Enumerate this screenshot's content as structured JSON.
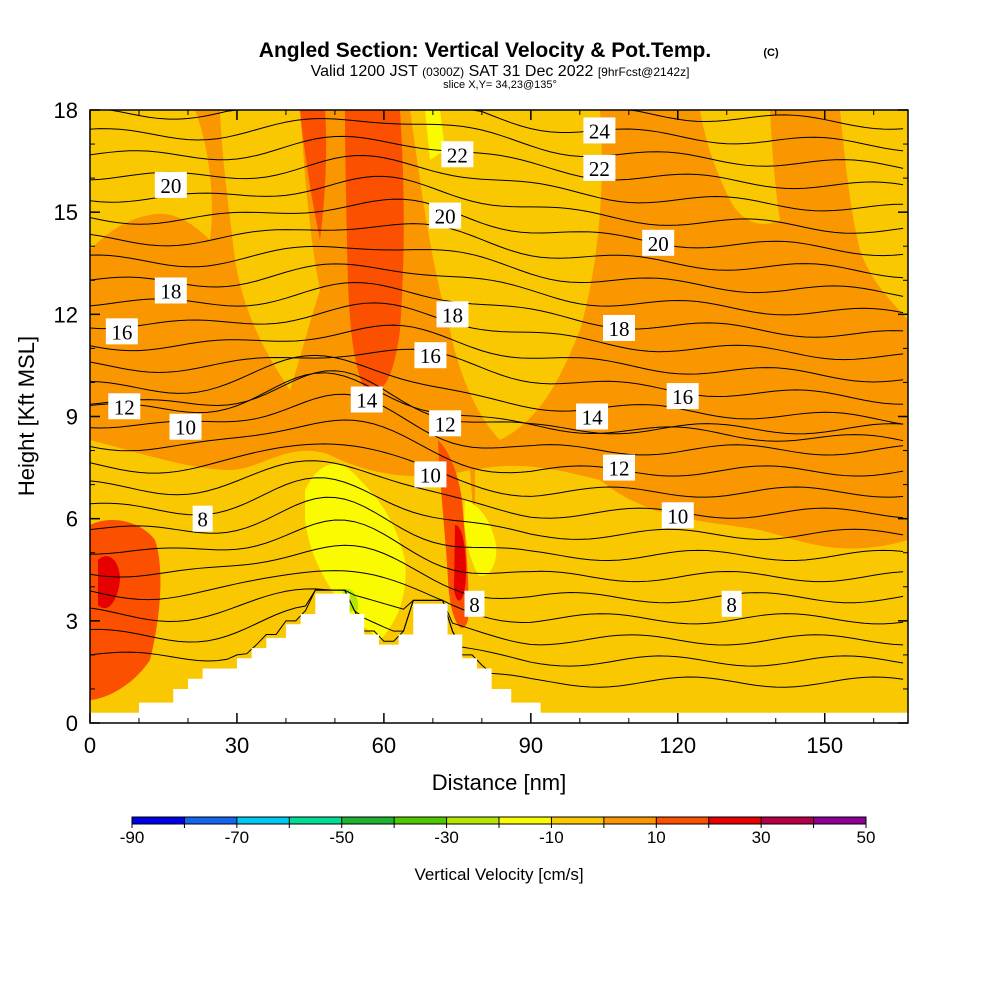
{
  "header": {
    "title": "Angled Section: Vertical Velocity & Pot.Temp.",
    "title_unit": "(C)",
    "valid_prefix": "Valid 1200 JST",
    "valid_utc": "(0300Z)",
    "valid_date": "SAT 31 Dec 2022",
    "forecast": "[9hrFcst@2142z]",
    "slice": "slice X,Y= 34,23@135°"
  },
  "colorbar": {
    "title": "Vertical Velocity [cm/s]",
    "tick_labels": [
      "-90",
      "-70",
      "-50",
      "-30",
      "-10",
      "10",
      "30",
      "50"
    ],
    "colors": [
      "#0000e6",
      "#1464f0",
      "#00c8f0",
      "#00dc96",
      "#1eb432",
      "#50c800",
      "#b4e600",
      "#fafa00",
      "#fac800",
      "#fa9600",
      "#fa5000",
      "#e60000",
      "#b40046",
      "#8c0096"
    ]
  },
  "chart_data": {
    "type": "heatmap",
    "title": "Angled Section: Vertical Velocity & Pot.Temp. (C)",
    "xlabel": "Distance [nm]",
    "ylabel": "Height [Kft MSL]",
    "xlim": [
      0,
      167
    ],
    "ylim": [
      0,
      18
    ],
    "x_ticks": [
      0,
      30,
      60,
      90,
      120,
      150
    ],
    "y_ticks": [
      0,
      3,
      6,
      9,
      12,
      15,
      18
    ],
    "color_variable": "Vertical Velocity [cm/s]",
    "contour_variable": "Potential Temperature (C)",
    "contour_labels": [
      {
        "text": "24",
        "x": 104,
        "y": 17.4
      },
      {
        "text": "22",
        "x": 75,
        "y": 16.7
      },
      {
        "text": "22",
        "x": 104,
        "y": 16.3
      },
      {
        "text": "20",
        "x": 16.5,
        "y": 15.8
      },
      {
        "text": "20",
        "x": 72.5,
        "y": 14.9
      },
      {
        "text": "20",
        "x": 116,
        "y": 14.1
      },
      {
        "text": "18",
        "x": 16.5,
        "y": 12.7
      },
      {
        "text": "18",
        "x": 74,
        "y": 12.0
      },
      {
        "text": "18",
        "x": 108,
        "y": 11.6
      },
      {
        "text": "16",
        "x": 6.5,
        "y": 11.5
      },
      {
        "text": "16",
        "x": 69.5,
        "y": 10.8
      },
      {
        "text": "16",
        "x": 121,
        "y": 9.6
      },
      {
        "text": "14",
        "x": 56.5,
        "y": 9.5
      },
      {
        "text": "14",
        "x": 102.5,
        "y": 9.0
      },
      {
        "text": "12",
        "x": 7,
        "y": 9.3
      },
      {
        "text": "12",
        "x": 72.5,
        "y": 8.8
      },
      {
        "text": "12",
        "x": 108,
        "y": 7.5
      },
      {
        "text": "10",
        "x": 19.5,
        "y": 8.7
      },
      {
        "text": "10",
        "x": 69.5,
        "y": 7.3
      },
      {
        "text": "10",
        "x": 120,
        "y": 6.1
      },
      {
        "text": "8",
        "x": 23,
        "y": 6.0
      },
      {
        "text": "8",
        "x": 78.5,
        "y": 3.5
      },
      {
        "text": "8",
        "x": 131,
        "y": 3.5
      }
    ],
    "terrain_heights": [
      {
        "x": 0,
        "h": 0.3
      },
      {
        "x": 10,
        "h": 0.6
      },
      {
        "x": 17,
        "h": 1.0
      },
      {
        "x": 20,
        "h": 1.3
      },
      {
        "x": 23,
        "h": 1.6
      },
      {
        "x": 30,
        "h": 1.9
      },
      {
        "x": 33,
        "h": 2.2
      },
      {
        "x": 36,
        "h": 2.5
      },
      {
        "x": 40,
        "h": 2.9
      },
      {
        "x": 43,
        "h": 3.2
      },
      {
        "x": 46,
        "h": 3.8
      },
      {
        "x": 53,
        "h": 3.2
      },
      {
        "x": 56,
        "h": 2.6
      },
      {
        "x": 59,
        "h": 2.3
      },
      {
        "x": 63,
        "h": 2.6
      },
      {
        "x": 66,
        "h": 3.5
      },
      {
        "x": 73,
        "h": 2.6
      },
      {
        "x": 76,
        "h": 1.9
      },
      {
        "x": 79,
        "h": 1.6
      },
      {
        "x": 82,
        "h": 1.0
      },
      {
        "x": 86,
        "h": 0.6
      },
      {
        "x": 92,
        "h": 0.3
      }
    ]
  }
}
